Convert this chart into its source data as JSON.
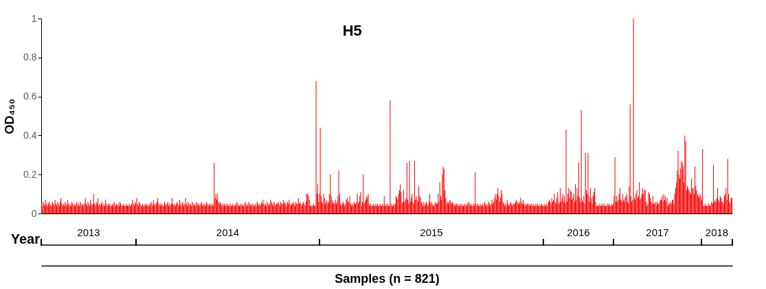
{
  "chart_data": {
    "type": "bar",
    "title": "H5",
    "xlabel": "Samples (n = 821)",
    "ylabel": "OD₄₅₀",
    "color": "#ff0000",
    "categories": [
      null,
      null,
      null,
      null,
      null,
      null,
      null,
      null,
      null,
      null,
      null,
      null,
      null,
      null,
      null,
      null,
      null,
      null,
      null,
      null,
      null,
      null,
      null,
      null,
      null,
      null,
      null,
      null,
      null,
      null,
      null,
      null,
      null,
      null,
      null,
      null,
      null,
      null,
      null,
      null,
      null,
      null,
      null,
      null,
      null,
      null,
      null,
      null,
      null,
      null,
      null,
      null,
      null,
      null,
      null,
      null,
      null,
      null,
      null,
      null,
      null,
      null,
      null,
      null,
      null,
      null,
      null,
      null,
      null,
      null,
      null,
      null,
      null,
      null,
      null,
      null,
      null,
      null,
      null,
      null,
      null,
      null,
      null,
      null,
      null,
      null,
      null,
      null,
      null,
      null,
      null,
      null,
      null,
      null,
      null,
      null,
      null,
      null,
      null,
      null,
      null,
      null,
      null,
      null,
      null,
      null,
      null,
      null,
      null,
      null,
      null,
      null,
      null,
      null,
      null,
      null,
      null,
      null,
      null,
      null,
      null,
      null,
      null,
      null,
      null,
      null,
      null,
      null,
      null,
      null,
      null,
      null,
      null,
      null,
      null,
      null,
      null,
      null,
      null,
      null,
      null,
      null,
      null,
      null,
      null,
      null,
      null,
      null,
      null,
      null,
      null,
      null,
      null,
      null,
      null,
      null,
      null,
      null,
      null,
      null,
      null,
      null,
      null,
      null,
      null,
      null,
      null,
      null,
      null,
      null,
      null,
      null,
      null,
      null,
      null,
      null,
      null,
      null,
      null,
      null,
      null,
      null,
      null,
      null,
      null,
      null,
      null,
      null,
      null,
      null,
      null,
      null,
      null,
      null,
      null,
      null,
      null,
      null,
      null,
      null,
      null,
      null,
      null,
      null,
      null,
      null,
      null,
      null,
      null,
      null,
      null,
      null,
      null,
      null,
      null,
      null,
      null,
      null,
      null,
      null,
      null,
      null,
      null,
      null,
      null,
      null,
      null,
      null,
      null,
      null,
      null,
      null,
      null,
      null,
      null,
      null,
      null,
      null,
      null,
      null,
      null,
      null,
      null,
      null,
      null,
      null,
      null,
      null,
      null,
      null,
      null,
      null,
      null,
      null,
      null,
      null,
      null,
      null,
      null,
      null,
      null,
      null,
      null,
      null,
      null,
      null,
      null,
      null,
      null,
      null,
      null,
      null,
      null,
      null,
      null,
      null,
      null,
      null,
      null,
      null,
      null,
      null,
      null,
      null,
      null,
      null,
      null,
      null,
      null,
      null,
      null,
      null,
      null,
      null,
      null,
      null,
      null,
      null,
      null,
      null,
      null,
      null,
      null,
      null,
      null,
      null,
      null,
      null,
      null,
      null,
      null,
      null,
      null,
      null,
      null,
      null,
      null,
      null,
      null,
      null,
      null,
      null,
      null,
      null,
      null,
      null,
      null,
      null,
      null,
      null,
      null,
      null,
      null,
      null,
      null,
      null,
      null,
      null,
      null,
      null,
      null,
      null,
      null,
      null,
      null,
      null,
      null,
      null,
      null,
      null,
      null,
      null,
      null,
      null,
      null,
      null,
      null,
      null,
      null,
      null,
      null,
      null,
      null,
      null,
      null,
      null,
      null,
      null,
      null,
      null,
      null,
      null,
      null,
      null,
      null,
      null,
      null,
      null,
      null,
      null,
      null,
      null,
      null,
      null,
      null,
      null,
      null,
      null,
      null,
      null,
      null,
      null,
      null,
      null,
      null,
      null,
      null,
      null,
      null,
      null,
      null,
      null,
      null,
      null,
      null,
      null,
      null,
      null,
      null,
      null,
      null,
      null,
      null,
      null,
      null,
      null,
      null,
      null,
      null,
      null,
      null,
      null,
      null,
      null,
      null,
      null,
      null,
      null,
      null,
      null,
      null,
      null,
      null,
      null,
      null,
      null,
      null,
      null,
      null,
      null,
      null,
      null,
      null,
      null,
      null,
      null,
      null,
      null,
      null,
      null,
      null,
      null,
      null,
      null,
      null,
      null,
      null,
      null,
      null,
      null,
      null,
      null,
      null,
      null,
      null,
      null,
      null,
      null,
      null,
      null,
      null,
      null,
      null,
      null,
      null,
      null,
      null,
      null,
      null,
      null,
      null,
      null,
      null,
      null,
      null,
      null,
      null,
      null,
      null,
      null,
      null,
      null,
      null,
      null,
      null,
      null,
      null,
      null,
      null,
      null,
      null,
      null,
      null,
      null,
      null,
      null,
      null,
      null,
      null,
      null,
      null,
      null,
      null,
      null,
      null,
      null,
      null,
      null,
      null,
      null,
      null,
      null,
      null,
      null,
      null,
      null,
      null,
      null,
      null,
      null,
      null,
      null,
      null,
      null,
      null,
      null,
      null,
      null,
      null,
      null,
      null,
      null,
      null,
      null,
      null,
      null,
      null,
      null,
      null,
      null,
      null,
      null,
      null,
      null,
      null,
      null,
      null,
      null,
      null,
      null,
      null,
      null,
      null,
      null,
      null,
      null,
      null,
      null,
      null,
      null,
      null,
      null,
      null,
      null,
      null,
      null,
      null,
      null,
      null,
      null,
      null,
      null,
      null,
      null,
      null,
      null,
      null,
      null,
      null,
      null,
      null,
      null,
      null,
      null,
      null,
      null,
      null,
      null,
      null,
      null,
      null,
      null,
      null,
      null,
      null,
      null,
      null,
      null,
      null,
      null,
      null,
      null,
      null,
      null,
      null,
      null,
      null,
      null,
      null,
      null,
      null,
      null,
      null,
      null,
      null,
      null,
      null,
      null,
      null,
      null,
      null,
      null,
      null,
      null,
      null,
      null,
      null,
      null,
      null,
      null,
      null,
      null,
      null,
      null,
      null,
      null,
      null,
      null,
      null,
      null,
      null,
      null,
      null,
      null,
      null,
      null,
      null,
      null,
      null,
      null,
      null,
      null,
      null,
      null,
      null,
      null,
      null,
      null,
      null,
      null,
      null,
      null,
      null,
      null,
      null,
      null,
      null,
      null,
      null,
      null,
      null,
      null,
      null,
      null,
      null,
      null,
      null,
      null,
      null,
      null,
      null,
      null,
      null,
      null,
      null,
      null,
      null,
      null,
      null,
      null,
      null,
      null,
      null,
      null,
      null,
      null,
      null,
      null,
      null,
      null,
      null,
      null,
      null,
      null,
      null,
      null,
      null,
      null,
      null,
      null,
      null,
      null,
      null,
      null,
      null,
      null,
      null,
      null,
      null,
      null,
      null,
      null,
      null,
      null,
      null,
      null,
      null,
      null,
      null,
      null,
      null,
      null,
      null,
      null,
      null,
      null,
      null,
      null,
      null,
      null,
      null,
      null,
      null,
      null,
      null,
      null,
      null,
      null,
      null,
      null,
      null,
      null,
      null,
      null,
      null,
      null,
      null,
      null,
      null,
      null,
      null,
      null,
      null,
      null,
      null,
      null,
      null,
      null,
      null,
      null,
      null,
      null,
      null,
      null,
      null,
      null,
      null,
      null,
      null,
      null,
      null,
      null,
      null,
      null,
      null,
      null,
      null,
      null,
      null,
      null,
      null,
      null,
      null,
      null,
      null,
      null,
      null,
      null,
      null,
      null,
      null,
      null,
      null,
      null,
      null,
      null,
      null,
      null,
      null,
      null,
      null
    ],
    "values": [
      0.05,
      0.04,
      0.06,
      0.05,
      0.04,
      0.07,
      0.05,
      0.04,
      0.05,
      0.06,
      0.04,
      0.05,
      0.04,
      0.06,
      0.05,
      0.04,
      0.07,
      0.05,
      0.04,
      0.06,
      0.05,
      0.04,
      0.06,
      0.08,
      0.05,
      0.04,
      0.05,
      0.04,
      0.06,
      0.05,
      0.04,
      0.07,
      0.05,
      0.04,
      0.05,
      0.04,
      0.06,
      0.05,
      0.04,
      0.05,
      0.04,
      0.05,
      0.06,
      0.04,
      0.05,
      0.04,
      0.06,
      0.05,
      0.04,
      0.05,
      0.04,
      0.05,
      0.08,
      0.05,
      0.04,
      0.06,
      0.05,
      0.04,
      0.07,
      0.05,
      0.04,
      0.05,
      0.1,
      0.05,
      0.04,
      0.06,
      0.05,
      0.08,
      0.04,
      0.05,
      0.04,
      0.05,
      0.06,
      0.04,
      0.05,
      0.04,
      0.07,
      0.05,
      0.04,
      0.05,
      0.04,
      0.05,
      0.04,
      0.04,
      0.05,
      0.04,
      0.06,
      0.05,
      0.04,
      0.05,
      0.04,
      0.05,
      0.04,
      0.06,
      0.05,
      0.04,
      0.04,
      0.05,
      0.04,
      0.04,
      0.04,
      0.05,
      0.04,
      0.04,
      0.05,
      0.04,
      0.04,
      0.05,
      0.07,
      0.05,
      0.04,
      0.06,
      0.05,
      0.08,
      0.05,
      0.04,
      0.06,
      0.05,
      0.04,
      0.04,
      0.05,
      0.04,
      0.04,
      0.05,
      0.04,
      0.05,
      0.04,
      0.04,
      0.05,
      0.04,
      0.06,
      0.05,
      0.04,
      0.07,
      0.05,
      0.04,
      0.05,
      0.06,
      0.08,
      0.05,
      0.04,
      0.05,
      0.04,
      0.05,
      0.04,
      0.04,
      0.06,
      0.05,
      0.04,
      0.05,
      0.06,
      0.04,
      0.05,
      0.04,
      0.05,
      0.08,
      0.05,
      0.04,
      0.05,
      0.04,
      0.05,
      0.06,
      0.05,
      0.04,
      0.07,
      0.05,
      0.04,
      0.06,
      0.05,
      0.04,
      0.05,
      0.08,
      0.05,
      0.04,
      0.06,
      0.05,
      0.04,
      0.05,
      0.04,
      0.06,
      0.05,
      0.04,
      0.05,
      0.04,
      0.06,
      0.05,
      0.04,
      0.05,
      0.04,
      0.05,
      0.06,
      0.04,
      0.05,
      0.04,
      0.05,
      0.04,
      0.06,
      0.05,
      0.04,
      0.05,
      0.04,
      0.05,
      0.04,
      0.05,
      0.04,
      0.26,
      0.08,
      0.1,
      0.07,
      0.1,
      0.06,
      0.05,
      0.06,
      0.05,
      0.04,
      0.05,
      0.04,
      0.05,
      0.04,
      0.05,
      0.04,
      0.05,
      0.04,
      0.04,
      0.05,
      0.04,
      0.04,
      0.05,
      0.04,
      0.04,
      0.05,
      0.04,
      0.06,
      0.05,
      0.04,
      0.04,
      0.05,
      0.04,
      0.05,
      0.04,
      0.04,
      0.05,
      0.06,
      0.04,
      0.05,
      0.04,
      0.06,
      0.05,
      0.04,
      0.05,
      0.04,
      0.05,
      0.04,
      0.04,
      0.05,
      0.04,
      0.06,
      0.05,
      0.04,
      0.05,
      0.04,
      0.06,
      0.05,
      0.07,
      0.05,
      0.04,
      0.05,
      0.04,
      0.06,
      0.05,
      0.04,
      0.05,
      0.07,
      0.06,
      0.05,
      0.04,
      0.06,
      0.05,
      0.04,
      0.05,
      0.05,
      0.06,
      0.05,
      0.04,
      0.06,
      0.05,
      0.05,
      0.07,
      0.05,
      0.06,
      0.05,
      0.04,
      0.06,
      0.05,
      0.07,
      0.05,
      0.04,
      0.05,
      0.05,
      0.06,
      0.05,
      0.04,
      0.06,
      0.05,
      0.05,
      0.08,
      0.05,
      0.06,
      0.05,
      0.04,
      0.05,
      0.06,
      0.05,
      0.04,
      0.06,
      0.1,
      0.1,
      0.09,
      0.07,
      0.04,
      0.04,
      0.04,
      0.04,
      0.05,
      0.04,
      0.04,
      0.68,
      0.1,
      0.15,
      0.06,
      0.1,
      0.44,
      0.09,
      0.06,
      0.05,
      0.1,
      0.08,
      0.05,
      0.07,
      0.06,
      0.05,
      0.06,
      0.1,
      0.2,
      0.09,
      0.07,
      0.05,
      0.06,
      0.05,
      0.07,
      0.05,
      0.06,
      0.09,
      0.22,
      0.1,
      0.05,
      0.04,
      0.05,
      0.06,
      0.05,
      0.04,
      0.05,
      0.07,
      0.08,
      0.06,
      0.06,
      0.09,
      0.05,
      0.04,
      0.05,
      0.04,
      0.06,
      0.05,
      0.05,
      0.06,
      0.1,
      0.05,
      0.06,
      0.09,
      0.11,
      0.04,
      0.06,
      0.2,
      0.05,
      0.06,
      0.07,
      0.09,
      0.08,
      0.1,
      0.05,
      0.04,
      0.05,
      0.04,
      0.04,
      0.05,
      0.04,
      0.04,
      0.05,
      0.04,
      0.05,
      0.04,
      0.04,
      0.05,
      0.04,
      0.04,
      0.05,
      0.04,
      0.09,
      0.04,
      0.05,
      0.04,
      0.05,
      0.04,
      0.04,
      0.58,
      0.05,
      0.04,
      0.04,
      0.05,
      0.04,
      0.05,
      0.09,
      0.08,
      0.07,
      0.1,
      0.12,
      0.15,
      0.11,
      0.05,
      0.06,
      0.12,
      0.06,
      0.07,
      0.08,
      0.26,
      0.07,
      0.05,
      0.27,
      0.06,
      0.08,
      0.1,
      0.06,
      0.05,
      0.27,
      0.07,
      0.09,
      0.07,
      0.06,
      0.14,
      0.09,
      0.08,
      0.06,
      0.05,
      0.04,
      0.06,
      0.04,
      0.05,
      0.06,
      0.05,
      0.04,
      0.06,
      0.1,
      0.05,
      0.06,
      0.05,
      0.04,
      0.04,
      0.05,
      0.06,
      0.05,
      0.05,
      0.1,
      0.06,
      0.16,
      0.09,
      0.07,
      0.2,
      0.24,
      0.23,
      0.12,
      0.08,
      0.05,
      0.06,
      0.05,
      0.06,
      0.07,
      0.06,
      0.05,
      0.06,
      0.05,
      0.04,
      0.05,
      0.04,
      0.05,
      0.05,
      0.04,
      0.04,
      0.05,
      0.04,
      0.05,
      0.04,
      0.04,
      0.05,
      0.04,
      0.05,
      0.04,
      0.05,
      0.06,
      0.05,
      0.04,
      0.05,
      0.04,
      0.04,
      0.05,
      0.04,
      0.21,
      0.05,
      0.04,
      0.05,
      0.04,
      0.04,
      0.05,
      0.04,
      0.04,
      0.05,
      0.04,
      0.06,
      0.05,
      0.04,
      0.05,
      0.04,
      0.06,
      0.05,
      0.04,
      0.05,
      0.07,
      0.05,
      0.06,
      0.08,
      0.1,
      0.07,
      0.1,
      0.13,
      0.09,
      0.06,
      0.08,
      0.12,
      0.1,
      0.06,
      0.05,
      0.04,
      0.05,
      0.04,
      0.07,
      0.05,
      0.04,
      0.05,
      0.06,
      0.05,
      0.04,
      0.05,
      0.05,
      0.05,
      0.06,
      0.07,
      0.06,
      0.05,
      0.06,
      0.05,
      0.08,
      0.06,
      0.05,
      0.07,
      0.05,
      0.04,
      0.05,
      0.04,
      0.05,
      0.05,
      0.04,
      0.05,
      0.04,
      0.05,
      0.04,
      0.05,
      0.04,
      0.04,
      0.05,
      0.04,
      0.05,
      0.04,
      0.04,
      0.05,
      0.04,
      0.05,
      0.04,
      0.04,
      0.05,
      0.04,
      0.04,
      0.05,
      0.04,
      0.06,
      0.07,
      0.06,
      0.05,
      0.08,
      0.06,
      0.07,
      0.1,
      0.06,
      0.05,
      0.08,
      0.11,
      0.06,
      0.05,
      0.13,
      0.06,
      0.08,
      0.1,
      0.06,
      0.09,
      0.05,
      0.43,
      0.06,
      0.1,
      0.13,
      0.08,
      0.12,
      0.11,
      0.07,
      0.08,
      0.1,
      0.06,
      0.15,
      0.07,
      0.13,
      0.09,
      0.26,
      0.08,
      0.06,
      0.53,
      0.07,
      0.06,
      0.09,
      0.05,
      0.31,
      0.12,
      0.1,
      0.31,
      0.09,
      0.06,
      0.13,
      0.08,
      0.05,
      0.09,
      0.11,
      0.13,
      0.06,
      0.04,
      0.04,
      0.04,
      0.04,
      0.05,
      0.04,
      0.04,
      0.05,
      0.04,
      0.05,
      0.04,
      0.04,
      0.04,
      0.05,
      0.04,
      0.05,
      0.04,
      0.04,
      0.05,
      0.04,
      0.05,
      0.09,
      0.29,
      0.06,
      0.09,
      0.06,
      0.07,
      0.1,
      0.13,
      0.07,
      0.06,
      0.1,
      0.07,
      0.06,
      0.08,
      0.09,
      0.1,
      0.06,
      0.05,
      0.14,
      0.56,
      0.09,
      0.06,
      0.07,
      1.0,
      0.08,
      0.07,
      0.1,
      0.12,
      0.08,
      0.09,
      0.16,
      0.07,
      0.08,
      0.1,
      0.13,
      0.1,
      0.12,
      0.12,
      0.06,
      0.04,
      0.05,
      0.11,
      0.1,
      0.08,
      0.06,
      0.05,
      0.09,
      0.05,
      0.05,
      0.06,
      0.04,
      0.06,
      0.05,
      0.05,
      0.06,
      0.07,
      0.07,
      0.09,
      0.06,
      0.1,
      0.07,
      0.09,
      0.06,
      0.08,
      0.04,
      0.05,
      0.05,
      0.06,
      0.05,
      0.07,
      0.07,
      0.05,
      0.1,
      0.13,
      0.16,
      0.22,
      0.32,
      0.2,
      0.18,
      0.23,
      0.27,
      0.26,
      0.24,
      0.16,
      0.4,
      0.37,
      0.12,
      0.14,
      0.13,
      0.12,
      0.11,
      0.1,
      0.18,
      0.13,
      0.13,
      0.1,
      0.24,
      0.14,
      0.12,
      0.1,
      0.09,
      0.08,
      0.1,
      0.09,
      0.07,
      0.33,
      0.04,
      0.04,
      0.05,
      0.04,
      0.04,
      0.04,
      0.05,
      0.04,
      0.04,
      0.05,
      0.06,
      0.05,
      0.25,
      0.06,
      0.07,
      0.06,
      0.08,
      0.13,
      0.07,
      0.06,
      0.09,
      0.08,
      0.06,
      0.06,
      0.05,
      0.09,
      0.1,
      0.13,
      0.07,
      0.28,
      0.1,
      0.06,
      0.05,
      0.08,
      0.08
    ],
    "ylim": [
      0,
      1
    ],
    "yticks": [
      0,
      0.2,
      0.4,
      0.6,
      0.8,
      1
    ],
    "grid": false,
    "annotations": [
      "Year",
      "2013",
      "2014",
      "2015",
      "2016",
      "2017",
      "2018"
    ]
  }
}
